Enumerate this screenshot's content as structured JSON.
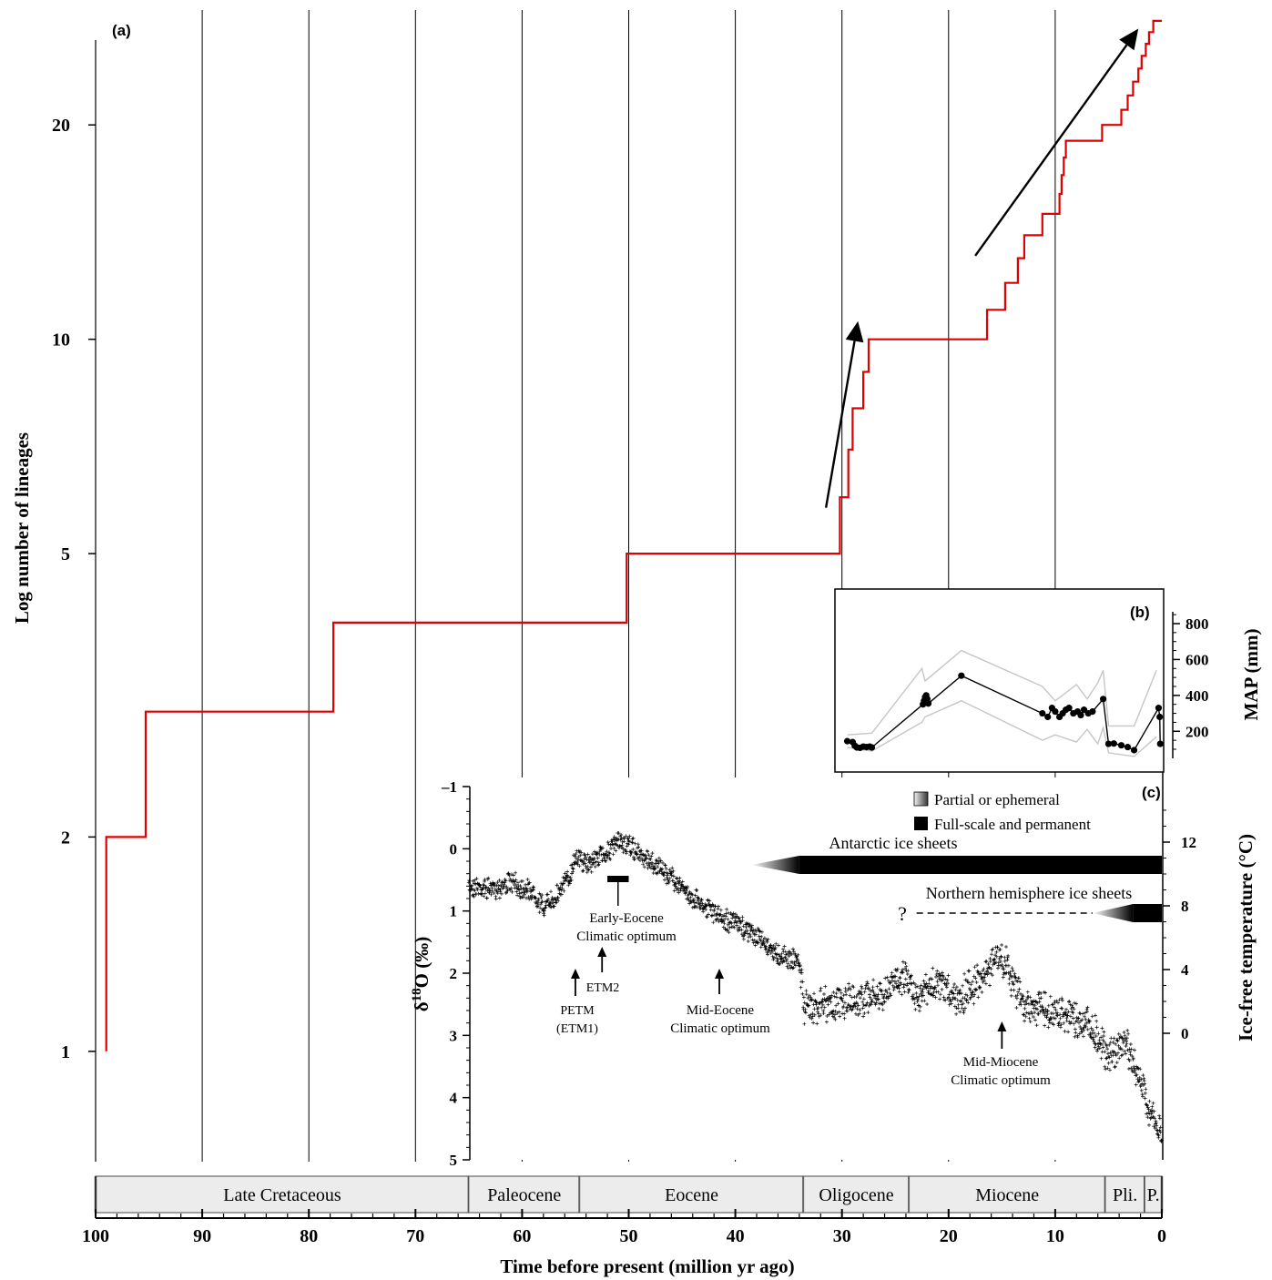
{
  "chart_data": [
    {
      "panel": "(a)",
      "type": "line",
      "step": true,
      "ylabel": "Log number of lineages",
      "yscale": "log",
      "ylim": [
        0.7,
        29
      ],
      "yticks": [
        1,
        2,
        5,
        10,
        20
      ],
      "xlabel": "Time before present (million yr ago)",
      "xlim": [
        100,
        0
      ],
      "xticks": [
        100,
        90,
        80,
        70,
        60,
        50,
        40,
        30,
        20,
        10,
        0
      ],
      "vertical_grid": true,
      "lineage_steps": [
        [
          99,
          1
        ],
        [
          99,
          2
        ],
        [
          95.3,
          2
        ],
        [
          95.3,
          3
        ],
        [
          77.7,
          3
        ],
        [
          77.7,
          4
        ],
        [
          50.2,
          4
        ],
        [
          50.2,
          5
        ],
        [
          30.2,
          5
        ],
        [
          30.2,
          6
        ],
        [
          29.4,
          6
        ],
        [
          29.4,
          7
        ],
        [
          29.0,
          7
        ],
        [
          29.0,
          8
        ],
        [
          28.0,
          8
        ],
        [
          28.0,
          9
        ],
        [
          27.5,
          9
        ],
        [
          27.5,
          10
        ],
        [
          16.4,
          10
        ],
        [
          16.4,
          11
        ],
        [
          14.7,
          11
        ],
        [
          14.7,
          12
        ],
        [
          13.5,
          12
        ],
        [
          13.5,
          13
        ],
        [
          12.9,
          13
        ],
        [
          12.9,
          14
        ],
        [
          11.2,
          14
        ],
        [
          11.2,
          15
        ],
        [
          9.6,
          15
        ],
        [
          9.6,
          16
        ],
        [
          9.4,
          16
        ],
        [
          9.4,
          17
        ],
        [
          9.2,
          17
        ],
        [
          9.2,
          18
        ],
        [
          9.0,
          18
        ],
        [
          9.0,
          19
        ],
        [
          5.6,
          19
        ],
        [
          5.6,
          20
        ],
        [
          3.8,
          20
        ],
        [
          3.8,
          21
        ],
        [
          3.2,
          21
        ],
        [
          3.2,
          22
        ],
        [
          2.7,
          22
        ],
        [
          2.7,
          23
        ],
        [
          2.2,
          23
        ],
        [
          2.2,
          24
        ],
        [
          1.9,
          24
        ],
        [
          1.9,
          25
        ],
        [
          1.5,
          25
        ],
        [
          1.5,
          26
        ],
        [
          1.2,
          26
        ],
        [
          1.2,
          27
        ],
        [
          0.8,
          27
        ],
        [
          0.8,
          28
        ],
        [
          0,
          28
        ]
      ],
      "trend_arrows": [
        {
          "from": [
            31.5,
            5.8
          ],
          "to": [
            28.5,
            10.6
          ]
        },
        {
          "from": [
            17.5,
            13.1
          ],
          "to": [
            2.2,
            27.3
          ]
        }
      ],
      "line_color": "#e00000"
    },
    {
      "panel": "(b)",
      "type": "line",
      "ylabel": "MAP (mm)",
      "yticks": [
        200,
        400,
        600,
        800
      ],
      "ylim": [
        100,
        850
      ],
      "xlim": [
        30,
        0
      ],
      "main": [
        [
          29.5,
          145
        ],
        [
          29.0,
          140
        ],
        [
          28.8,
          120
        ],
        [
          28.6,
          110
        ],
        [
          28.3,
          108
        ],
        [
          28.0,
          115
        ],
        [
          27.7,
          112
        ],
        [
          27.4,
          115
        ],
        [
          27.2,
          110
        ],
        [
          22.4,
          350
        ],
        [
          22.3,
          370
        ],
        [
          22.2,
          390
        ],
        [
          22.1,
          400
        ],
        [
          22.0,
          380
        ],
        [
          21.9,
          355
        ],
        [
          18.8,
          510
        ],
        [
          11.2,
          300
        ],
        [
          10.7,
          280
        ],
        [
          10.3,
          330
        ],
        [
          10.0,
          310
        ],
        [
          9.6,
          280
        ],
        [
          9.3,
          300
        ],
        [
          9.0,
          320
        ],
        [
          8.7,
          330
        ],
        [
          8.3,
          300
        ],
        [
          7.9,
          310
        ],
        [
          7.6,
          290
        ],
        [
          7.3,
          320
        ],
        [
          6.9,
          300
        ],
        [
          6.5,
          310
        ],
        [
          5.5,
          380
        ],
        [
          5.0,
          130
        ],
        [
          4.5,
          132
        ],
        [
          3.8,
          122
        ],
        [
          3.2,
          112
        ],
        [
          2.6,
          95
        ],
        [
          0.3,
          330
        ],
        [
          0.2,
          280
        ],
        [
          0.15,
          130
        ]
      ],
      "upper": [
        [
          29.5,
          180
        ],
        [
          27.2,
          190
        ],
        [
          22.5,
          550
        ],
        [
          22.2,
          480
        ],
        [
          18.8,
          650
        ],
        [
          11.2,
          450
        ],
        [
          10.0,
          370
        ],
        [
          8.0,
          460
        ],
        [
          7.0,
          380
        ],
        [
          6.0,
          470
        ],
        [
          5.5,
          540
        ],
        [
          5.0,
          230
        ],
        [
          2.6,
          230
        ],
        [
          0.5,
          540
        ]
      ],
      "lower": [
        [
          29.5,
          110
        ],
        [
          27.2,
          90
        ],
        [
          22.5,
          250
        ],
        [
          22.2,
          280
        ],
        [
          18.8,
          370
        ],
        [
          11.2,
          150
        ],
        [
          10.0,
          180
        ],
        [
          8.0,
          140
        ],
        [
          7.0,
          210
        ],
        [
          6.0,
          130
        ],
        [
          5.5,
          220
        ],
        [
          5.0,
          80
        ],
        [
          2.6,
          60
        ],
        [
          0.5,
          170
        ]
      ]
    },
    {
      "panel": "(c)",
      "type": "scatter",
      "ylabel_left_main": "δ",
      "ylabel_left_sup": "18",
      "ylabel_left_rest": "O (‰)",
      "ylim_left": [
        5,
        -1
      ],
      "yticks_left": [
        -1,
        0,
        1,
        2,
        3,
        4,
        5
      ],
      "ytick_labels_left": [
        "–1",
        "0",
        "1",
        "2",
        "3",
        "4",
        "5"
      ],
      "ylabel_right": "Ice-free temperature (°C)",
      "yticks_right": [
        0,
        4,
        8,
        12
      ],
      "d18O_trend": [
        [
          65,
          0.6
        ],
        [
          63,
          0.65
        ],
        [
          61,
          0.55
        ],
        [
          59,
          0.7
        ],
        [
          58,
          0.95
        ],
        [
          57,
          0.8
        ],
        [
          56,
          0.55
        ],
        [
          55.5,
          0.45
        ],
        [
          55,
          0.1
        ],
        [
          54,
          0.25
        ],
        [
          53,
          0.15
        ],
        [
          52,
          0.05
        ],
        [
          51,
          -0.1
        ],
        [
          50,
          -0.05
        ],
        [
          49,
          0.1
        ],
        [
          48,
          0.2
        ],
        [
          46,
          0.45
        ],
        [
          44,
          0.8
        ],
        [
          42,
          1.0
        ],
        [
          41.5,
          1.1
        ],
        [
          40,
          1.2
        ],
        [
          38,
          1.4
        ],
        [
          36,
          1.7
        ],
        [
          35,
          1.75
        ],
        [
          34,
          1.8
        ],
        [
          33.5,
          2.6
        ],
        [
          33,
          2.5
        ],
        [
          30,
          2.5
        ],
        [
          28,
          2.4
        ],
        [
          26,
          2.4
        ],
        [
          25,
          2.1
        ],
        [
          24,
          2.0
        ],
        [
          23,
          2.35
        ],
        [
          21,
          2.2
        ],
        [
          19,
          2.4
        ],
        [
          17,
          2.1
        ],
        [
          15.5,
          1.75
        ],
        [
          14.5,
          1.9
        ],
        [
          13,
          2.5
        ],
        [
          11,
          2.6
        ],
        [
          9,
          2.7
        ],
        [
          7,
          2.8
        ],
        [
          5,
          3.3
        ],
        [
          3.5,
          3.1
        ],
        [
          2.5,
          3.5
        ],
        [
          1.5,
          4.0
        ],
        [
          0.5,
          4.5
        ],
        [
          0,
          4.6
        ]
      ],
      "ice_sheets": [
        {
          "label": "Antarctic ice sheets",
          "partial": [
            34,
            38.5
          ],
          "full": [
            34,
            0
          ],
          "row": "upper"
        },
        {
          "label": "Northern hemisphere ice sheets",
          "dashed": [
            23,
            6.5
          ],
          "partial": [
            6.5,
            2.7
          ],
          "full": [
            2.7,
            0
          ],
          "question_mark": "?",
          "row": "lower"
        }
      ],
      "legend": [
        "Partial or ephemeral",
        "Full-scale and permanent"
      ],
      "annotations": [
        {
          "lines": [
            "Early-Eocene",
            "Climatic optimum"
          ],
          "x": 50.5
        },
        {
          "lines": [
            "ETM2"
          ],
          "x": 52.5
        },
        {
          "lines": [
            "PETM",
            "(ETM1)"
          ],
          "x": 55
        },
        {
          "lines": [
            "Mid-Eocene",
            "Climatic optimum"
          ],
          "x": 41.5
        },
        {
          "lines": [
            "Mid-Miocene",
            "Climatic optimum"
          ],
          "x": 15
        }
      ],
      "eocene_bar": [
        52,
        50
      ]
    }
  ],
  "labels": {
    "panel_a": "(a)",
    "panel_b": "(b)",
    "panel_c": "(c)",
    "question": "?"
  },
  "epochs": [
    {
      "name": "Late Cretaceous",
      "start": 100,
      "end": 65
    },
    {
      "name": "Paleocene",
      "start": 65,
      "end": 54.6
    },
    {
      "name": "Eocene",
      "start": 54.6,
      "end": 33.6
    },
    {
      "name": "Oligocene",
      "start": 33.6,
      "end": 23.7
    },
    {
      "name": "Miocene",
      "start": 23.7,
      "end": 5.3
    },
    {
      "name": "Pli.",
      "start": 5.3,
      "end": 1.6
    },
    {
      "name": "P.",
      "start": 1.6,
      "end": 0
    }
  ],
  "colors": {
    "lineage": "#e00000",
    "grid": "#000000",
    "epoch_fill": "#ececec",
    "ci_band": "#c6c6c6"
  }
}
